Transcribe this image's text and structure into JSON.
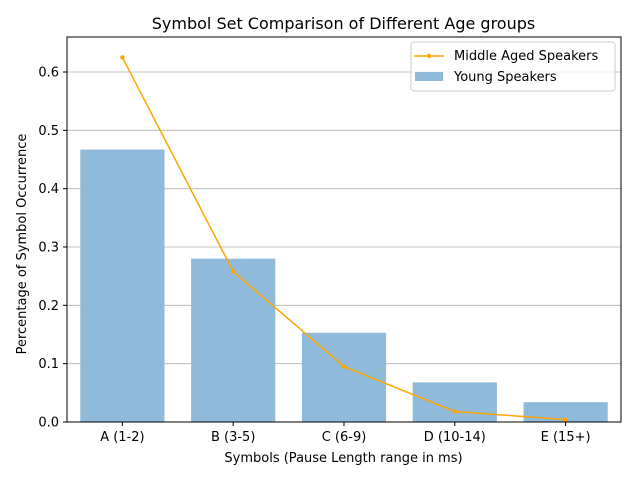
{
  "chart_data": {
    "type": "bar",
    "title": "Symbol Set Comparison of Different Age groups",
    "xlabel": "Symbols (Pause Length range in ms)",
    "ylabel": "Percentage of Symbol Occurrence",
    "categories": [
      "A (1-2)",
      "B (3-5)",
      "C (6-9)",
      "D (10-14)",
      "E (15+)"
    ],
    "ylim": [
      0,
      0.66
    ],
    "yticks": [
      0.0,
      0.1,
      0.2,
      0.3,
      0.4,
      0.5,
      0.6
    ],
    "ytick_labels": [
      "0.0",
      "0.1",
      "0.2",
      "0.3",
      "0.4",
      "0.5",
      "0.6"
    ],
    "grid": "horizontal",
    "legend_position": "top-right",
    "series": [
      {
        "name": "Middle Aged Speakers",
        "type": "line",
        "color": "#ffa500",
        "marker": "point",
        "values": [
          0.625,
          0.258,
          0.095,
          0.018,
          0.004
        ]
      },
      {
        "name": "Young Speakers",
        "type": "bar",
        "color": "#8fbad9",
        "values": [
          0.467,
          0.28,
          0.153,
          0.068,
          0.034
        ]
      }
    ]
  }
}
